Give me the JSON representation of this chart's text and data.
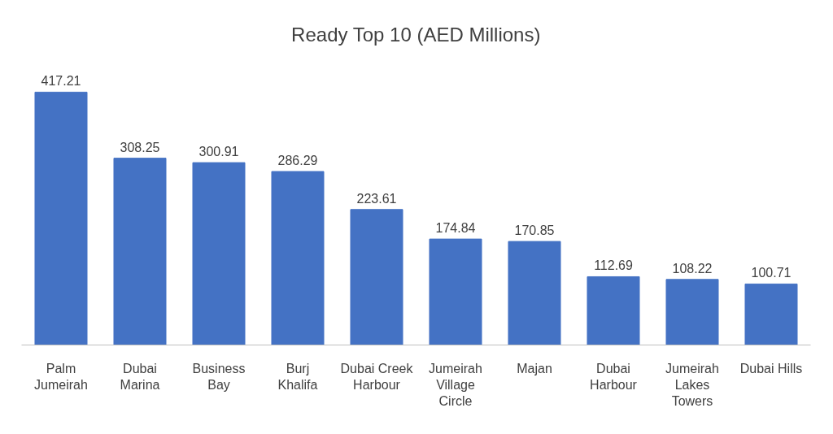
{
  "chart_data": {
    "type": "bar",
    "title": "Ready Top 10 (AED Millions)",
    "categories": [
      "Palm Jumeirah",
      "Dubai Marina",
      "Business Bay",
      "Burj Khalifa",
      "Dubai Creek Harbour",
      "Jumeirah Village Circle",
      "Majan",
      "Dubai Harbour",
      "Jumeirah Lakes Towers",
      "Dubai Hills"
    ],
    "values": [
      417.21,
      308.25,
      300.91,
      286.29,
      223.61,
      174.84,
      170.85,
      112.69,
      108.22,
      100.71
    ],
    "color": "#4472c4",
    "data_labels": true
  }
}
